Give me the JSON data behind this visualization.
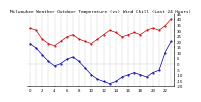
{
  "title": "Milwaukee Weather Outdoor Temperature (vs) Wind Chill (Last 24 Hours)",
  "title_fontsize": 3.2,
  "background_color": "#ffffff",
  "temp_color": "#cc0000",
  "windchill_color": "#0000aa",
  "grid_color": "#999999",
  "ylim": [
    -20,
    45
  ],
  "xlim": [
    0,
    23
  ],
  "hours": [
    0,
    1,
    2,
    3,
    4,
    5,
    6,
    7,
    8,
    9,
    10,
    11,
    12,
    13,
    14,
    15,
    16,
    17,
    18,
    19,
    20,
    21,
    22,
    23
  ],
  "temp": [
    32,
    30,
    22,
    18,
    16,
    20,
    24,
    26,
    22,
    20,
    18,
    22,
    26,
    30,
    28,
    24,
    26,
    28,
    26,
    30,
    32,
    30,
    34,
    40
  ],
  "windchill": [
    18,
    14,
    8,
    2,
    -2,
    0,
    4,
    6,
    2,
    -4,
    -10,
    -14,
    -16,
    -18,
    -16,
    -12,
    -10,
    -8,
    -10,
    -12,
    -8,
    -6,
    10,
    20
  ],
  "ytick_vals": [
    -20,
    -15,
    -10,
    -5,
    0,
    5,
    10,
    15,
    20,
    25,
    30,
    35,
    40,
    45
  ],
  "ytick_labels": [
    "-20",
    "-15",
    "-10",
    "-5",
    "0",
    "5",
    "10",
    "15",
    "20",
    "25",
    "30",
    "35",
    "40",
    "45"
  ],
  "xtick_vals": [
    0,
    2,
    4,
    6,
    8,
    10,
    12,
    14,
    16,
    18,
    20,
    22
  ],
  "xtick_labels": [
    "0",
    "2",
    "4",
    "6",
    "8",
    "10",
    "12",
    "14",
    "16",
    "18",
    "20",
    "22"
  ],
  "tick_fontsize": 2.8,
  "lw": 0.5,
  "markersize": 1.0
}
